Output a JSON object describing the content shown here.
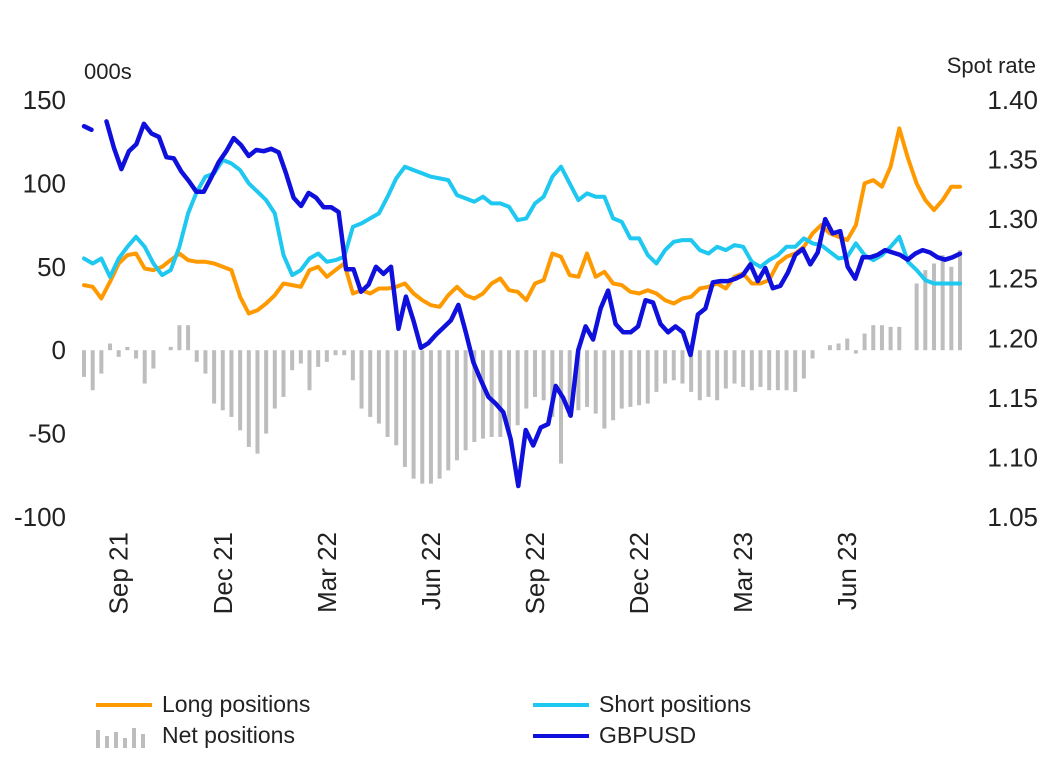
{
  "chart_data": {
    "type": "line",
    "left_axis_unit": "000s",
    "right_axis_unit": "Spot rate",
    "y_left": {
      "lim": [
        -100,
        150
      ],
      "ticks": [
        150,
        100,
        50,
        0,
        -50,
        -100
      ],
      "tick_labels": [
        "150",
        "100",
        "50",
        "0",
        "-50",
        "-100"
      ]
    },
    "y_right": {
      "lim": [
        1.05,
        1.4
      ],
      "ticks": [
        1.4,
        1.35,
        1.3,
        1.25,
        1.2,
        1.15,
        1.1,
        1.05
      ],
      "tick_labels": [
        "1.40",
        "1.35",
        "1.30",
        "1.25",
        "1.20",
        "1.15",
        "1.10",
        "1.05"
      ]
    },
    "x_tick_labels": [
      "Sep 21",
      "Dec 21",
      "Mar 22",
      "Jun 22",
      "Sep 22",
      "Dec 22",
      "Mar 23",
      "Jun 23"
    ],
    "x_tick_index": [
      4,
      16,
      28,
      40,
      52,
      64,
      76,
      88
    ],
    "colors": {
      "long": "#FF9900",
      "short": "#1EC8F0",
      "net": "#BDBDBD",
      "gbpusd": "#1010DD"
    },
    "series": [
      {
        "name": "Long positions",
        "axis": "left",
        "values": [
          39,
          38,
          31,
          41,
          52,
          57,
          58,
          49,
          48,
          50,
          54,
          58,
          54,
          53,
          53,
          52,
          50,
          48,
          32,
          22,
          24,
          28,
          33,
          40,
          39,
          38,
          48,
          50,
          44,
          48,
          52,
          34,
          36,
          34,
          37,
          37,
          38,
          40,
          34,
          30,
          27,
          26,
          33,
          38,
          33,
          31,
          34,
          40,
          43,
          36,
          35,
          30,
          40,
          42,
          58,
          56,
          45,
          44,
          58,
          44,
          47,
          40,
          39,
          35,
          34,
          36,
          34,
          30,
          28,
          31,
          32,
          37,
          38,
          40,
          37,
          44,
          46,
          40,
          40,
          42,
          52,
          56,
          58,
          62,
          70,
          75,
          70,
          68,
          66,
          75,
          100,
          102,
          98,
          110,
          133,
          115,
          100,
          90,
          84,
          90,
          98,
          98
        ]
      },
      {
        "name": "Short positions",
        "axis": "left",
        "values": [
          55,
          52,
          55,
          44,
          55,
          62,
          68,
          62,
          52,
          45,
          48,
          62,
          82,
          95,
          104,
          106,
          114,
          112,
          108,
          100,
          95,
          90,
          82,
          57,
          45,
          48,
          55,
          58,
          53,
          54,
          56,
          74,
          76,
          79,
          82,
          92,
          103,
          110,
          108,
          106,
          104,
          103,
          102,
          93,
          91,
          89,
          92,
          88,
          88,
          86,
          78,
          79,
          88,
          92,
          104,
          110,
          100,
          90,
          94,
          92,
          92,
          79,
          77,
          67,
          67,
          57,
          52,
          60,
          65,
          66,
          66,
          60,
          58,
          62,
          60,
          63,
          62,
          53,
          50,
          54,
          57,
          62,
          62,
          67,
          64,
          63,
          59,
          55,
          56,
          64,
          57,
          54,
          57,
          62,
          68,
          53,
          48,
          42,
          40,
          40,
          40,
          40
        ]
      },
      {
        "name": "Net positions",
        "axis": "left",
        "kind": "bar",
        "values": [
          -16,
          -24,
          -14,
          4,
          -4,
          2,
          -5,
          -20,
          -11,
          0,
          2,
          15,
          15,
          -7,
          -14,
          -32,
          -36,
          -40,
          -48,
          -58,
          -62,
          -50,
          -35,
          -28,
          -12,
          -8,
          -24,
          -10,
          -7,
          -3,
          -3,
          -18,
          -35,
          -40,
          -44,
          -52,
          -57,
          -70,
          -77,
          -80,
          -80,
          -77,
          -72,
          -66,
          -60,
          -55,
          -53,
          -52,
          -52,
          -50,
          -45,
          -35,
          -28,
          -30,
          -40,
          -68,
          -40,
          -36,
          -34,
          -38,
          -47,
          -42,
          -35,
          -34,
          -33,
          -32,
          -25,
          -20,
          -18,
          -20,
          -25,
          -30,
          -28,
          -30,
          -23,
          -20,
          -22,
          -24,
          -22,
          -24,
          -24,
          -24,
          -25,
          -17,
          -5,
          0,
          3,
          4,
          7,
          -2,
          10,
          15,
          15,
          14,
          14,
          0,
          40,
          48,
          52,
          57,
          50,
          60
        ]
      },
      {
        "name": "GBPUSD",
        "axis": "right",
        "values": [
          1.378,
          1.375,
          null,
          1.382,
          1.36,
          1.342,
          1.357,
          1.363,
          1.38,
          1.372,
          1.369,
          1.352,
          1.351,
          1.34,
          1.332,
          1.323,
          1.323,
          1.335,
          1.348,
          1.357,
          1.368,
          1.362,
          1.353,
          1.358,
          1.357,
          1.359,
          1.356,
          1.338,
          1.318,
          1.311,
          1.322,
          1.318,
          1.31,
          1.31,
          1.306,
          1.258,
          1.258,
          1.239,
          1.245,
          1.26,
          1.254,
          1.26,
          1.208,
          1.235,
          1.215,
          1.192,
          1.196,
          1.203,
          1.209,
          1.215,
          1.228,
          1.205,
          1.18,
          1.165,
          1.151,
          1.145,
          1.138,
          1.115,
          1.076,
          1.123,
          1.11,
          1.125,
          1.128,
          1.16,
          1.15,
          1.135,
          1.19,
          1.21,
          1.199,
          1.225,
          1.24,
          1.212,
          1.205,
          1.205,
          1.21,
          1.232,
          1.23,
          1.212,
          1.205,
          1.21,
          1.205,
          1.186,
          1.22,
          1.225,
          1.247,
          1.248,
          1.248,
          1.25,
          1.253,
          1.262,
          1.248,
          1.259,
          1.242,
          1.244,
          1.255,
          1.27,
          1.275,
          1.262,
          1.272,
          1.3,
          1.288,
          1.29,
          1.26,
          1.25,
          1.268,
          1.268,
          1.27,
          1.274,
          1.272,
          1.27,
          1.266,
          1.271,
          1.274,
          1.272,
          1.268,
          1.266,
          1.268,
          1.271
        ]
      }
    ]
  },
  "legend": [
    {
      "key": "long",
      "label": "Long positions",
      "kind": "line"
    },
    {
      "key": "short",
      "label": "Short positions",
      "kind": "line"
    },
    {
      "key": "net",
      "label": "Net positions",
      "kind": "bars"
    },
    {
      "key": "gbpusd",
      "label": "GBPUSD",
      "kind": "line"
    }
  ]
}
